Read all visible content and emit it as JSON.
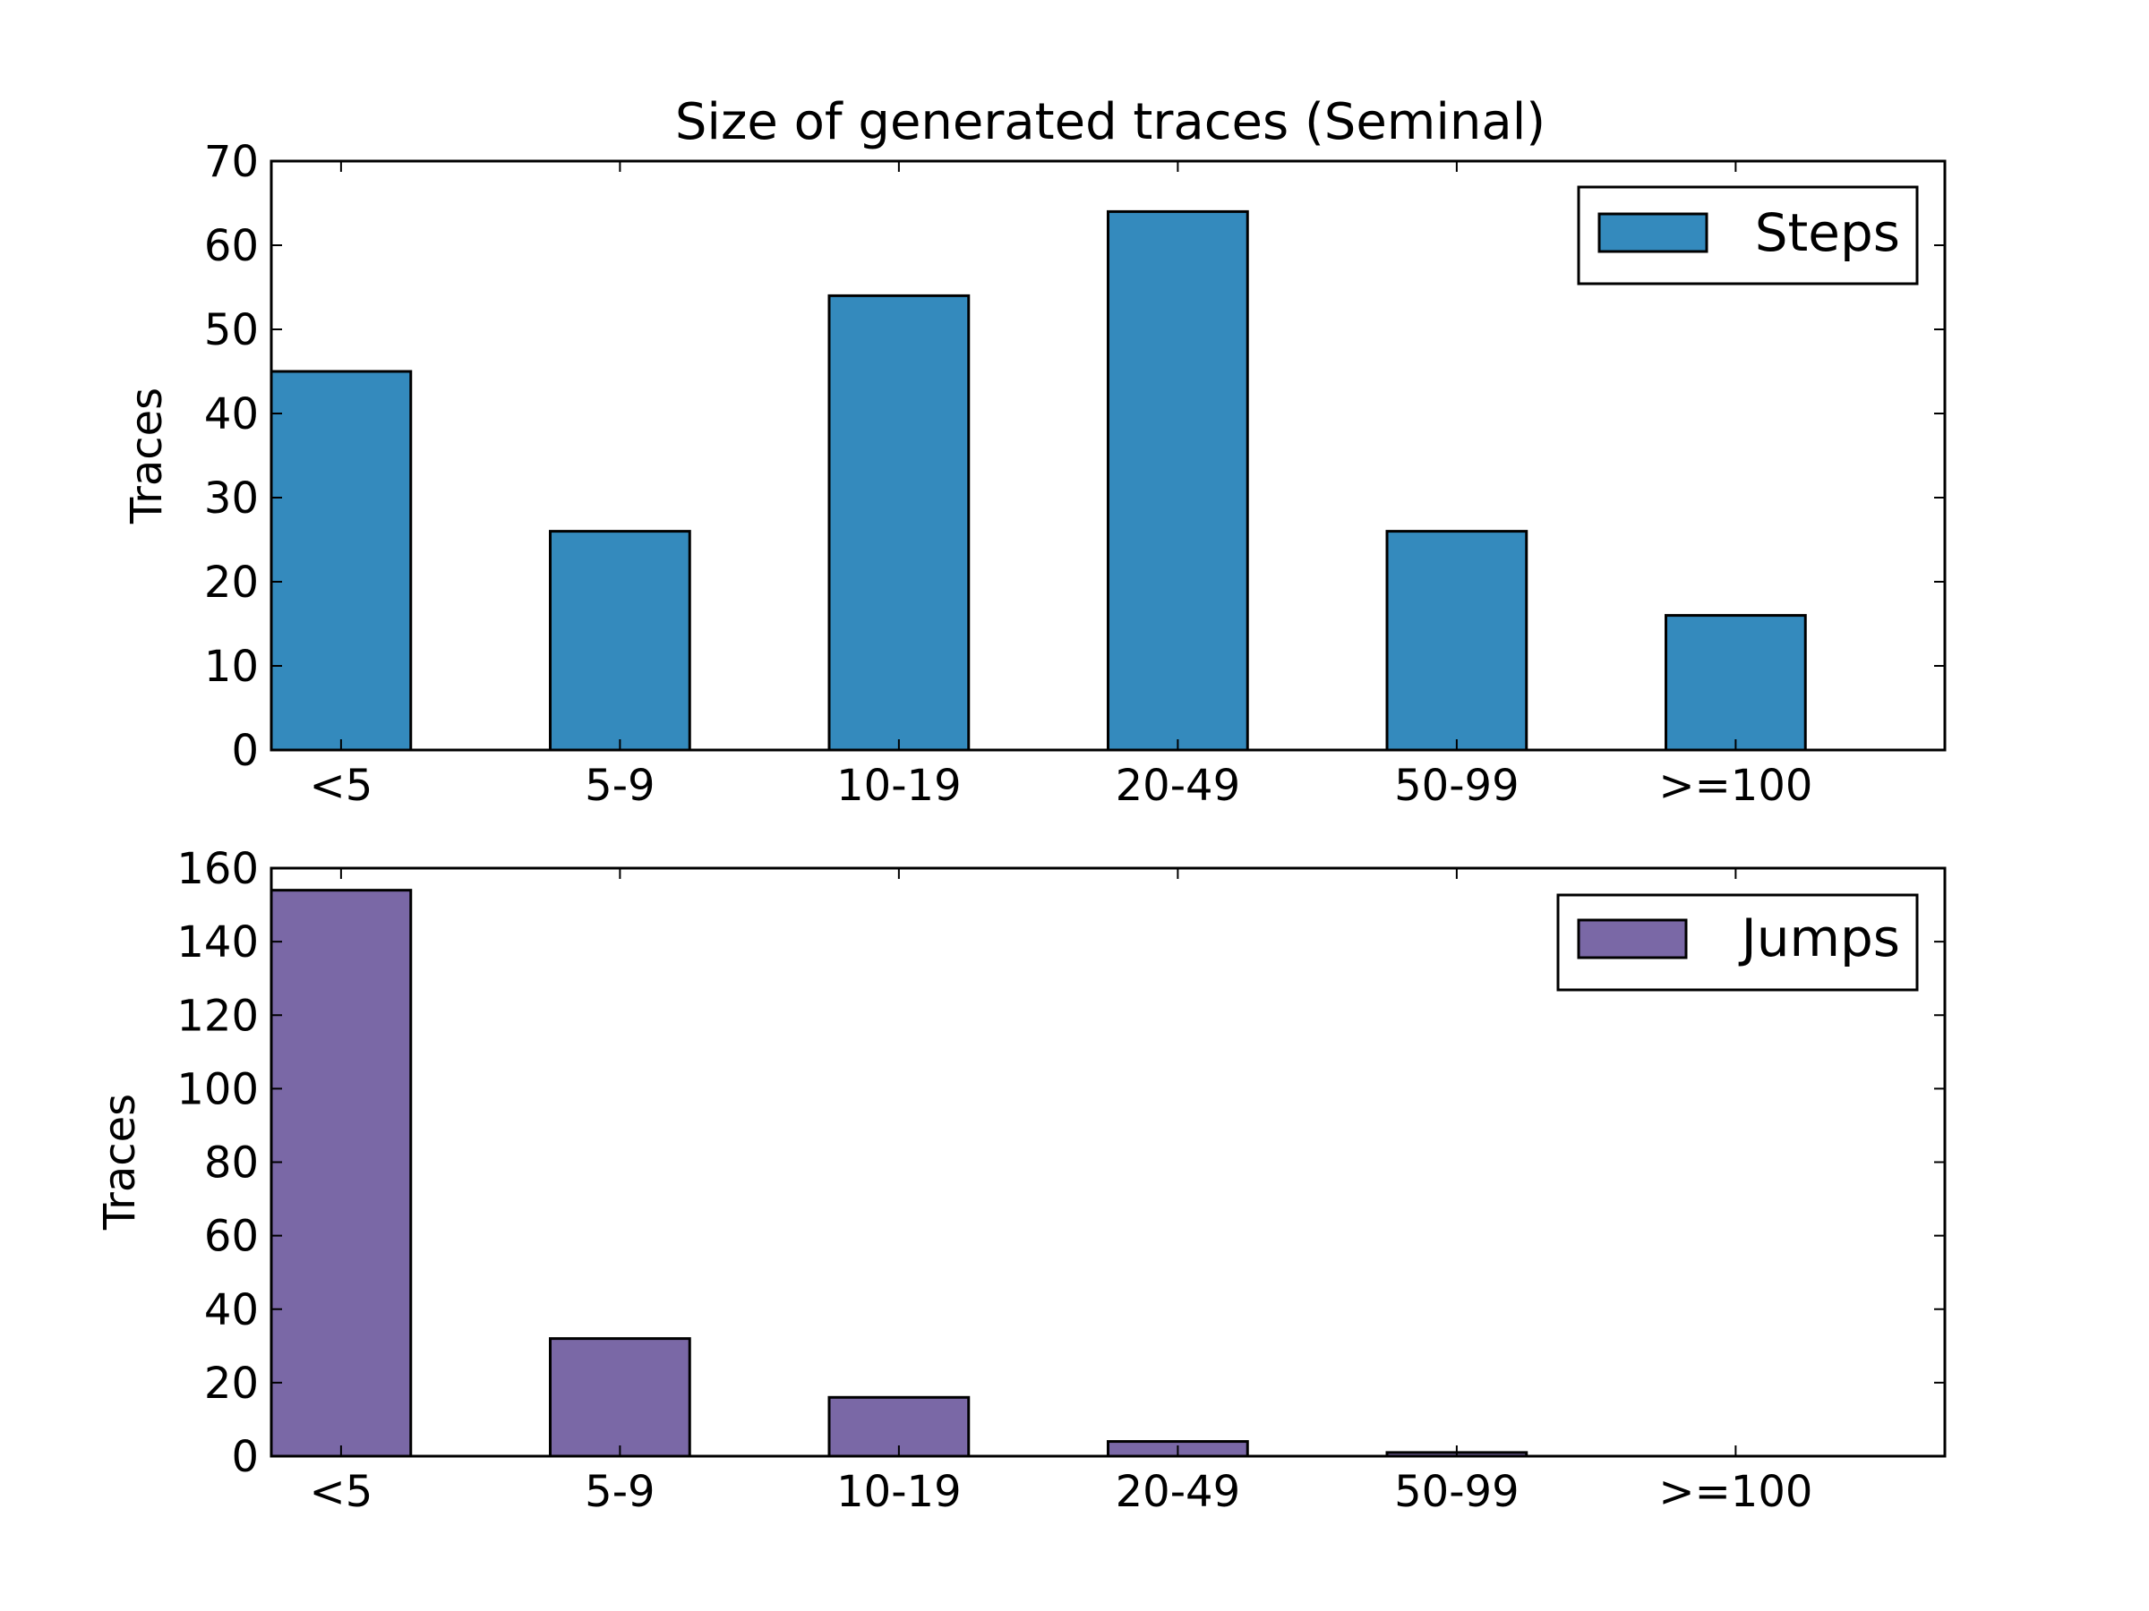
{
  "figure_title": "Size of generated traces (Seminal)",
  "chart_data": [
    {
      "type": "bar",
      "title": "Size of generated traces (Seminal)",
      "ylabel": "Traces",
      "xlabel": "",
      "categories": [
        "<5",
        "5-9",
        "10-19",
        "20-49",
        "50-99",
        ">=100"
      ],
      "series": [
        {
          "name": "Steps",
          "color": "#348abd",
          "values": [
            45,
            26,
            54,
            64,
            26,
            16
          ]
        }
      ],
      "ylim": [
        0,
        70
      ],
      "yticks": [
        0,
        10,
        20,
        30,
        40,
        50,
        60,
        70
      ],
      "legend": "top-right",
      "grid": false
    },
    {
      "type": "bar",
      "title": "",
      "ylabel": "Traces",
      "xlabel": "",
      "categories": [
        "<5",
        "5-9",
        "10-19",
        "20-49",
        "50-99",
        ">=100"
      ],
      "series": [
        {
          "name": "Jumps",
          "color": "#7a68a6",
          "values": [
            154,
            32,
            16,
            4,
            1,
            0
          ]
        }
      ],
      "ylim": [
        0,
        160
      ],
      "yticks": [
        0,
        20,
        40,
        60,
        80,
        100,
        120,
        140,
        160
      ],
      "legend": "top-right",
      "grid": false
    }
  ]
}
